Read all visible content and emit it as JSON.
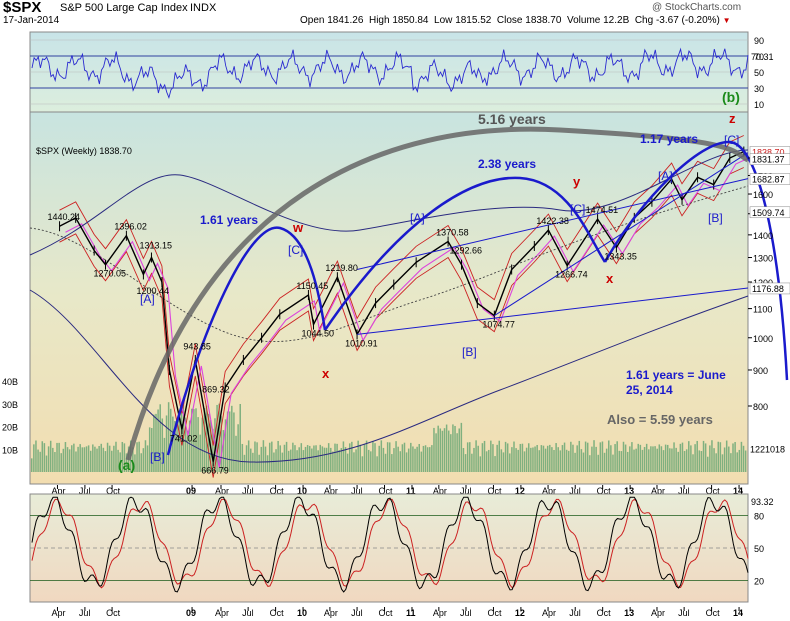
{
  "header": {
    "symbol": "$SPX",
    "name": "S&P 500 Large Cap Index",
    "exchange": "INDX",
    "date": "17-Jan-2014",
    "open_label": "Open",
    "open": "1841.26",
    "high_label": "High",
    "high": "1850.84",
    "low_label": "Low",
    "low": "1815.52",
    "close_label": "Close",
    "close": "1838.70",
    "volume_label": "Volume",
    "volume": "12.2B",
    "chg_label": "Chg",
    "chg": "-3.67 (-0.20%)",
    "watermark": "@ StockCharts.com",
    "chg_color": "#cc0000"
  },
  "rsi_panel": {
    "ticks": [
      "90",
      "70",
      "50",
      "30",
      "10"
    ],
    "last_value": "70.31",
    "overbought": 70,
    "oversold": 30
  },
  "price_panel": {
    "legend": "$SPX (Weekly) 1838.70",
    "y_ticks": [
      "1800",
      "1700",
      "1600",
      "1500",
      "1400",
      "1300",
      "1200",
      "1100",
      "1000",
      "900",
      "800"
    ],
    "right_labels": [
      "1838.70",
      "1831.37",
      "1682.87",
      "1509.74",
      "1176.88",
      "1221018"
    ],
    "volume_ticks": [
      "40B",
      "30B",
      "20B",
      "10B"
    ],
    "price_labels": [
      {
        "text": "1440.24",
        "date": "2007-10-08",
        "price": 1440
      },
      {
        "text": "1396.02",
        "date": "2008-05-19",
        "price": 1396
      },
      {
        "text": "1313.15",
        "date": "2008-08-11",
        "price": 1313
      },
      {
        "text": "1270.05",
        "date": "2008-03-10",
        "price": 1270
      },
      {
        "text": "1200.44",
        "date": "2008-08-01",
        "price": 1200
      },
      {
        "text": "943.85",
        "date": "2009-01-05",
        "price": 943
      },
      {
        "text": "869.32",
        "date": "2009-03-09",
        "price": 869
      },
      {
        "text": "741.02",
        "date": "2008-11-21",
        "price": 741
      },
      {
        "text": "666.79",
        "date": "2009-03-06",
        "price": 667
      },
      {
        "text": "1150.45",
        "date": "2010-01-19",
        "price": 1150
      },
      {
        "text": "1219.80",
        "date": "2010-04-26",
        "price": 1219
      },
      {
        "text": "1044.50",
        "date": "2010-02-05",
        "price": 1044
      },
      {
        "text": "1010.91",
        "date": "2010-07-01",
        "price": 1011
      },
      {
        "text": "1370.58",
        "date": "2011-05-02",
        "price": 1370
      },
      {
        "text": "1292.66",
        "date": "2011-06-16",
        "price": 1292
      },
      {
        "text": "1074.77",
        "date": "2011-10-04",
        "price": 1075
      },
      {
        "text": "1422.38",
        "date": "2012-04-02",
        "price": 1422
      },
      {
        "text": "1266.74",
        "date": "2012-06-04",
        "price": 1266
      },
      {
        "text": "1474.51",
        "date": "2012-09-14",
        "price": 1474
      },
      {
        "text": "1343.35",
        "date": "2012-11-16",
        "price": 1343
      }
    ]
  },
  "annotations": {
    "big_cycle": "5.16 years",
    "cycle_161": "1.61 years",
    "cycle_238": "2.38 years",
    "cycle_117": "1.17 years",
    "wave_b_green": "(b)",
    "wave_a_green": "(a)",
    "wave_z": "z",
    "wave_w": "w",
    "wave_y": "y",
    "wave_x1": "x",
    "wave_x2": "x",
    "C1": "[C]",
    "A1": "[A]",
    "B0": "[B]",
    "A2": "[A]",
    "B2": "[B]",
    "C2": "[C]",
    "A3": "[A]",
    "C3": "[C]",
    "B3": "[B]",
    "target_line1": "1.61 years = June",
    "target_line2": "25, 2014",
    "also": "Also = 5.59 years"
  },
  "x_axis": {
    "labels": [
      {
        "text": "Apr",
        "date": "2007-10-01"
      },
      {
        "text": "Jul",
        "date": "2008-01-01"
      },
      {
        "text": "Oct",
        "date": "2008-04-01"
      },
      {
        "text": "09",
        "date": "2008-12-25"
      },
      {
        "text": "Apr",
        "date": "2009-04-01"
      },
      {
        "text": "Jul",
        "date": "2009-07-01"
      },
      {
        "text": "Oct",
        "date": "2009-10-01"
      },
      {
        "text": "10",
        "date": "2010-01-01"
      },
      {
        "text": "Apr",
        "date": "2010-04-01"
      },
      {
        "text": "Jul",
        "date": "2010-07-01"
      },
      {
        "text": "Oct",
        "date": "2010-10-01"
      },
      {
        "text": "11",
        "date": "2011-01-01"
      },
      {
        "text": "Apr",
        "date": "2011-04-01"
      },
      {
        "text": "Jul",
        "date": "2011-07-01"
      },
      {
        "text": "Oct",
        "date": "2011-10-01"
      },
      {
        "text": "12",
        "date": "2012-01-01"
      },
      {
        "text": "Apr",
        "date": "2012-04-01"
      },
      {
        "text": "Jul",
        "date": "2012-07-01"
      },
      {
        "text": "Oct",
        "date": "2012-10-01"
      },
      {
        "text": "13",
        "date": "2013-01-01"
      },
      {
        "text": "Apr",
        "date": "2013-04-01"
      },
      {
        "text": "Jul",
        "date": "2013-07-01"
      },
      {
        "text": "Oct",
        "date": "2013-10-01"
      },
      {
        "text": "14",
        "date": "2014-01-01"
      }
    ]
  },
  "stoch_panel": {
    "ticks": [
      "80",
      "50",
      "20"
    ],
    "last_value": "93.32"
  },
  "chart_data": {
    "type": "line",
    "title": "$SPX S&P 500 Large Cap Index INDX",
    "series": [
      {
        "name": "$SPX (Weekly)",
        "x": [
          "2007-10-08",
          "2007-12-01",
          "2008-02-01",
          "2008-03-10",
          "2008-05-19",
          "2008-07-15",
          "2008-08-11",
          "2008-09-15",
          "2008-10-10",
          "2008-11-21",
          "2009-01-05",
          "2009-03-06",
          "2009-04-15",
          "2009-06-15",
          "2009-08-15",
          "2009-10-15",
          "2010-01-19",
          "2010-02-05",
          "2010-04-26",
          "2010-07-01",
          "2010-09-01",
          "2010-11-01",
          "2011-01-15",
          "2011-05-02",
          "2011-06-16",
          "2011-08-08",
          "2011-10-04",
          "2011-12-01",
          "2012-02-15",
          "2012-04-02",
          "2012-06-04",
          "2012-09-14",
          "2012-11-16",
          "2013-01-15",
          "2013-03-15",
          "2013-05-20",
          "2013-06-24",
          "2013-08-15",
          "2013-10-08",
          "2013-12-01",
          "2014-01-17"
        ],
        "y": [
          1440,
          1480,
          1330,
          1270,
          1396,
          1230,
          1300,
          1200,
          900,
          741,
          930,
          667,
          850,
          930,
          1000,
          1080,
          1150,
          1044,
          1219,
          1011,
          1120,
          1190,
          1280,
          1370,
          1270,
          1120,
          1075,
          1250,
          1350,
          1422,
          1266,
          1474,
          1343,
          1480,
          1560,
          1680,
          1570,
          1690,
          1650,
          1800,
          1838.7
        ]
      }
    ],
    "ylim": [
      650,
      1900
    ],
    "log_scale": true,
    "rsi_ylim": [
      10,
      90
    ],
    "stoch_ylim": [
      0,
      100
    ],
    "grid": false
  },
  "colors": {
    "price": "#000000",
    "cycle": "#1a1acc",
    "big_cycle": "#666666",
    "label_blue": "#1a1acc",
    "label_red": "#cc0000",
    "label_green": "#1a8a1a",
    "volume": "#7fb07f",
    "panel_top": "#c8e4e0",
    "panel_bottom": "#f2ddb0",
    "stoch_fill": "#f0d8c0"
  }
}
